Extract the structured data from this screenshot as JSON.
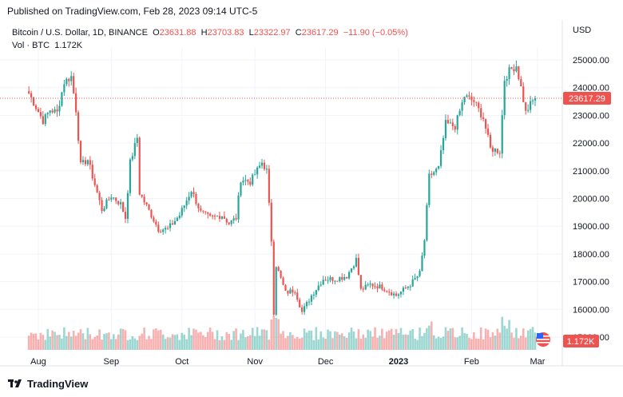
{
  "header": {
    "published": "Published on TradingView.com, Feb 28, 2023 09:14 UTC-5"
  },
  "legend": {
    "symbol": "Bitcoin / U.S. Dollar, 1D, BINANCE",
    "o_label": "O",
    "o_value": "23631.88",
    "h_label": "H",
    "h_value": "23703.83",
    "l_label": "L",
    "l_value": "23322.97",
    "c_label": "C",
    "c_value": "23617.29",
    "change": "−11.90 (−0.05%)",
    "vol_label": "Vol · BTC",
    "vol_value": "1.172K"
  },
  "currency": "USD",
  "brand": "TradingView",
  "colors": {
    "up": "#26a69a",
    "down": "#ef5350",
    "grid": "#f0f3fa",
    "text": "#131722"
  },
  "chart_data": {
    "type": "candlestick",
    "y_ticks": [
      "25000.00",
      "24000.00",
      "23000.00",
      "22000.00",
      "21000.00",
      "20000.00",
      "19000.00",
      "18000.00",
      "17000.00",
      "16000.00",
      "15000.00"
    ],
    "x_ticks": [
      "Aug",
      "Sep",
      "Oct",
      "Nov",
      "Dec",
      "2023",
      "Feb",
      "Mar"
    ],
    "last_price": "23617.29",
    "last_volume": "1.172K",
    "price_path": [
      [
        "2022-07-28",
        23800
      ],
      [
        "2022-07-31",
        23300
      ],
      [
        "2022-08-03",
        22800
      ],
      [
        "2022-08-06",
        23200
      ],
      [
        "2022-08-09",
        23100
      ],
      [
        "2022-08-12",
        24200
      ],
      [
        "2022-08-15",
        24400
      ],
      [
        "2022-08-17",
        23200
      ],
      [
        "2022-08-19",
        21200
      ],
      [
        "2022-08-22",
        21400
      ],
      [
        "2022-08-26",
        20200
      ],
      [
        "2022-08-28",
        19600
      ],
      [
        "2022-09-01",
        20100
      ],
      [
        "2022-09-05",
        19800
      ],
      [
        "2022-09-07",
        19300
      ],
      [
        "2022-09-09",
        21300
      ],
      [
        "2022-09-12",
        22200
      ],
      [
        "2022-09-13",
        20200
      ],
      [
        "2022-09-18",
        19400
      ],
      [
        "2022-09-21",
        18900
      ],
      [
        "2022-09-25",
        18900
      ],
      [
        "2022-09-30",
        19400
      ],
      [
        "2022-10-05",
        20300
      ],
      [
        "2022-10-09",
        19500
      ],
      [
        "2022-10-13",
        19300
      ],
      [
        "2022-10-18",
        19400
      ],
      [
        "2022-10-21",
        19100
      ],
      [
        "2022-10-24",
        19300
      ],
      [
        "2022-10-26",
        20700
      ],
      [
        "2022-10-30",
        20600
      ],
      [
        "2022-11-04",
        21300
      ],
      [
        "2022-11-06",
        21000
      ],
      [
        "2022-11-08",
        18500
      ],
      [
        "2022-11-09",
        15900
      ],
      [
        "2022-11-10",
        17600
      ],
      [
        "2022-11-14",
        16600
      ],
      [
        "2022-11-18",
        16700
      ],
      [
        "2022-11-21",
        15900
      ],
      [
        "2022-11-25",
        16500
      ],
      [
        "2022-11-30",
        17100
      ],
      [
        "2022-12-05",
        17100
      ],
      [
        "2022-12-10",
        17200
      ],
      [
        "2022-12-14",
        17800
      ],
      [
        "2022-12-16",
        16700
      ],
      [
        "2022-12-20",
        16900
      ],
      [
        "2022-12-25",
        16800
      ],
      [
        "2022-12-31",
        16500
      ],
      [
        "2023-01-06",
        16900
      ],
      [
        "2023-01-10",
        17300
      ],
      [
        "2023-01-12",
        18500
      ],
      [
        "2023-01-14",
        20800
      ],
      [
        "2023-01-18",
        21100
      ],
      [
        "2023-01-21",
        22700
      ],
      [
        "2023-01-25",
        22600
      ],
      [
        "2023-01-29",
        23700
      ],
      [
        "2023-02-02",
        23500
      ],
      [
        "2023-02-06",
        22900
      ],
      [
        "2023-02-09",
        21800
      ],
      [
        "2023-02-13",
        21700
      ],
      [
        "2023-02-15",
        24300
      ],
      [
        "2023-02-17",
        24600
      ],
      [
        "2023-02-20",
        24800
      ],
      [
        "2023-02-22",
        24000
      ],
      [
        "2023-02-24",
        23100
      ],
      [
        "2023-02-26",
        23400
      ],
      [
        "2023-02-28",
        23617
      ]
    ]
  }
}
